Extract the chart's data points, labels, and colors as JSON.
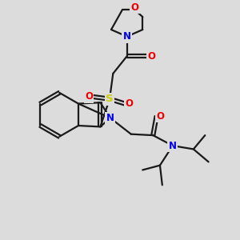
{
  "bg_color": "#dcdcdc",
  "bond_color": "#1a1a1a",
  "atom_colors": {
    "N": "#0000ee",
    "O": "#ee0000",
    "S": "#cccc00"
  },
  "bond_width": 1.6,
  "dbo": 0.07,
  "font_size": 8.5
}
